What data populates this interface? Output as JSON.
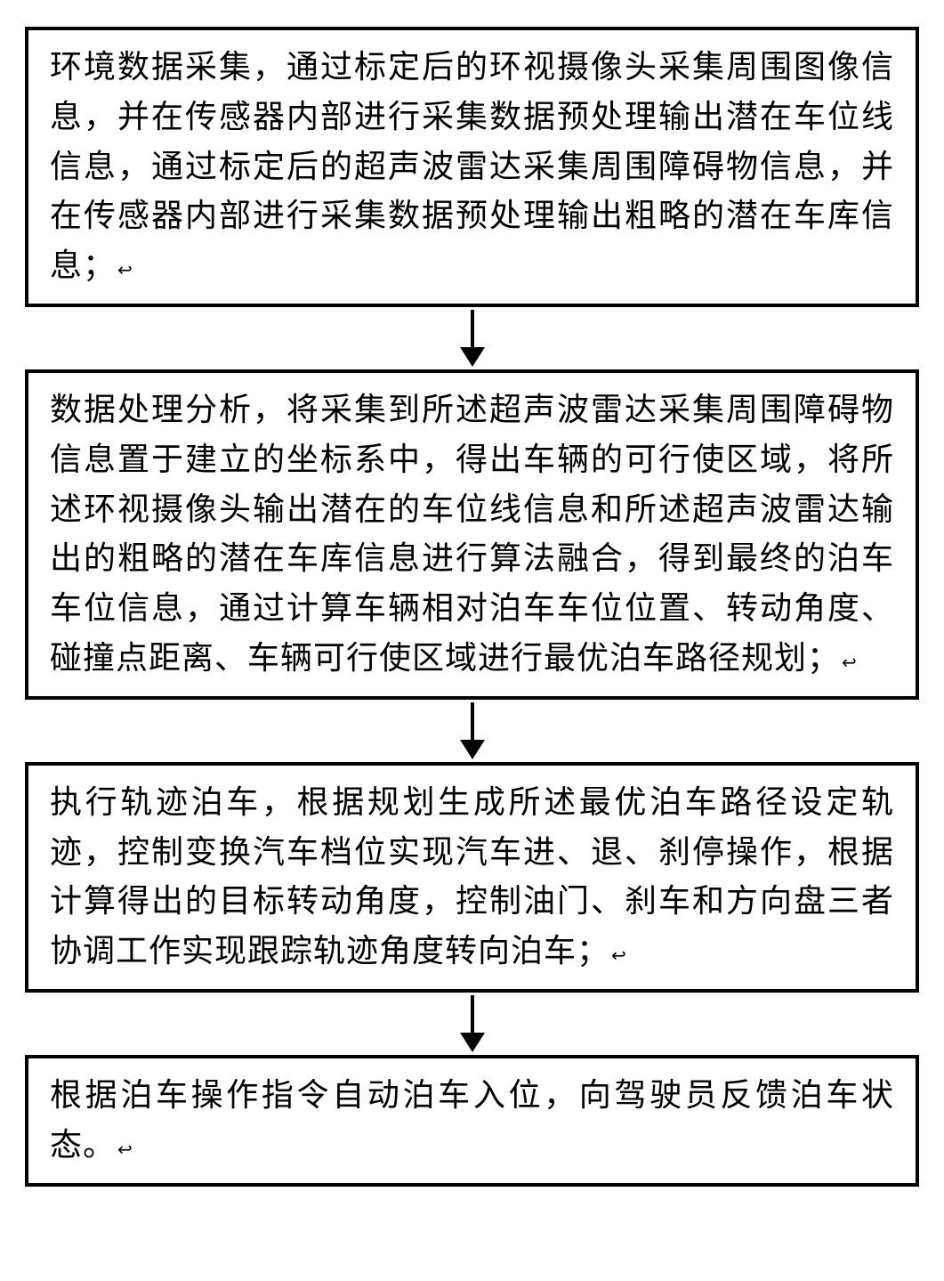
{
  "flowchart": {
    "background_color": "#ffffff",
    "border_color": "#000000",
    "border_width": 4,
    "text_color": "#000000",
    "font_size": 36,
    "line_height": 1.55,
    "arrow_color": "#000000",
    "arrow_line_width": 4,
    "arrow_line_height": 42,
    "arrow_head_width": 14,
    "arrow_head_height": 22,
    "boxes": [
      {
        "text": "环境数据采集，通过标定后的环视摄像头采集周围图像信息，并在传感器内部进行采集数据预处理输出潜在车位线信息，通过标定后的超声波雷达采集周围障碍物信息，并在传感器内部进行采集数据预处理输出粗略的潜在车库信息；"
      },
      {
        "text": "数据处理分析，将采集到所述超声波雷达采集周围障碍物信息置于建立的坐标系中，得出车辆的可行使区域，将所述环视摄像头输出潜在的车位线信息和所述超声波雷达输出的粗略的潜在车库信息进行算法融合，得到最终的泊车车位信息，通过计算车辆相对泊车车位位置、转动角度、碰撞点距离、车辆可行使区域进行最优泊车路径规划；"
      },
      {
        "text": "执行轨迹泊车，根据规划生成所述最优泊车路径设定轨迹，控制变换汽车档位实现汽车进、退、刹停操作，根据计算得出的目标转动角度，控制油门、刹车和方向盘三者协调工作实现跟踪轨迹角度转向泊车；"
      },
      {
        "text": "根据泊车操作指令自动泊车入位，向驾驶员反馈泊车状态。"
      }
    ]
  }
}
